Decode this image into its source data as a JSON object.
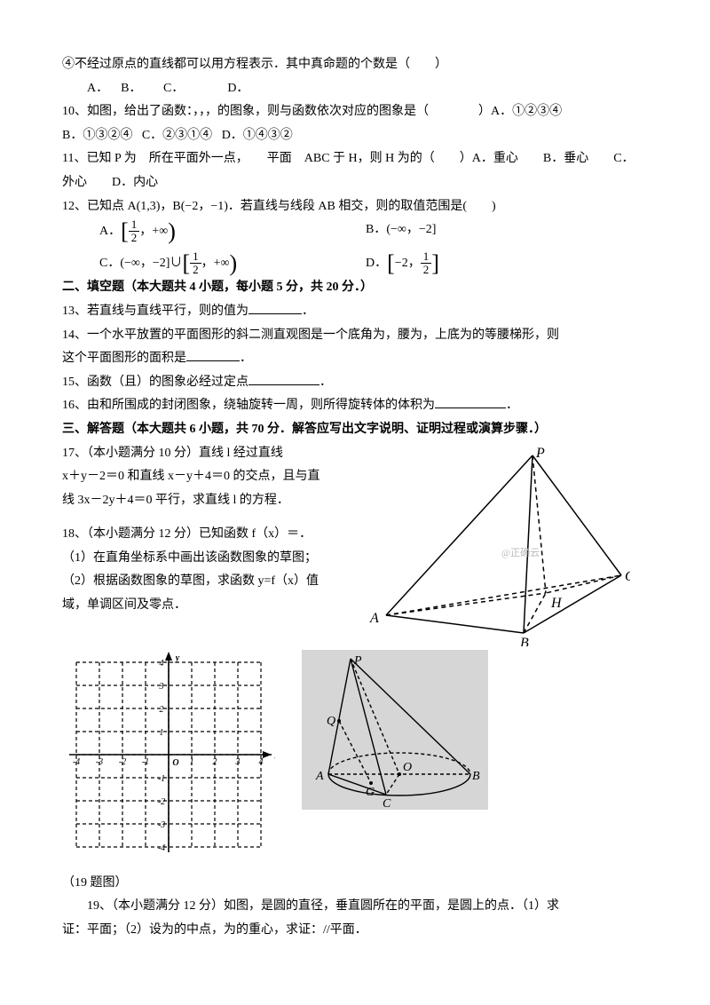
{
  "q4_suffix": "④不经过原点的直线都可以用方程表示．其中真命题的个数是（　　）",
  "q_opts_abcd": {
    "a": "A．",
    "b": "B．",
    "c": "C．",
    "d": "D．"
  },
  "q10": {
    "stem": "10、如图，给出了函数：，，，的图象，则与函数依次对应的图象是（　　　　）A．①②③④",
    "b": "B．①③②④",
    "c": "C．②③①④",
    "d": "D．①④③②"
  },
  "q11": {
    "stem_a": "11、已知 P 为　所在平面外一点，　　平面　ABC 于 H，则 H 为的（　　）A．重心　　B．垂心　　C．",
    "stem_b": "外心　　D．内心"
  },
  "q12": {
    "stem": "12、已知点 A(1,3)，B(−2，−1)．若直线与线段 AB 相交，则的取值范围是(　　)",
    "optA_pre": "A．",
    "optA_lbr": "[",
    "optA_rbr": ")",
    "optA_num": "1",
    "optA_den": "2",
    "optA_tail": "，+∞",
    "optB": "B．(−∞，−2]",
    "optC_pre": "C．(−∞，−2]∪",
    "optC_lbr": "[",
    "optC_rbr": ")",
    "optC_num": "1",
    "optC_den": "2",
    "optC_tail": "，+∞",
    "optD_pre": "D．",
    "optD_lbr": "[",
    "optD_rbr": "]",
    "optD_a": "−2，",
    "optD_num": "1",
    "optD_den": "2"
  },
  "sec2": "二、填空题（本大题共 4 小题，每小题 5 分，共 20 分．）",
  "q13": "13、若直线与直线平行，则的值为",
  "q13_end": "．",
  "q14a": "14、一个水平放置的平面图形的斜二测直观图是一个底角为，腰为，上底为的等腰梯形，则",
  "q14b": "这个平面图形的面积是",
  "q14b_end": "．",
  "q15": "15、函数（且）的图象必经过定点",
  "q15_end": "．",
  "q16": "16、由和所围成的封闭图象，绕轴旋转一周，则所得旋转体的体积为",
  "q16_end": "．",
  "sec3": "三、解答题（本大题共 6 小题，共 70 分．解答应写出文字说明、证明过程或演算步骤．）",
  "q17a": "17、（本小题满分 10 分）直线 l 经过直线",
  "q17b": "x＋y－2＝0 和直线 x－y＋4＝0 的交点，且与直",
  "q17c": "线 3x－2y＋4＝0 平行，求直线 l 的方程．",
  "q18a": "18、（本小题满分 12 分）已知函数 f（x）＝．",
  "q18b": "（1）在直角坐标系中画出该函数图象的草图；",
  "q18c": "（2）根据函数图象的草图，求函数 y=f（x）值",
  "q18d": "域，单调区间及零点．",
  "fig19_caption": "（19 题图）",
  "q19a": "19、（本小题满分 12 分）如图，是圆的直径，垂直圆所在的平面，是圆上的点．（1）求",
  "q19b": "证：平面；（2）设为的中点，为的重心，求证：//平面．",
  "pyramid": {
    "P": "P",
    "A": "A",
    "B": "B",
    "C": "C",
    "H": "H",
    "watermark": "@正确云",
    "stroke": "#000000",
    "dash": "5,4"
  },
  "grid": {
    "size": 8,
    "cell": 26,
    "axis_x": "x",
    "axis_y": "y",
    "origin": "O",
    "ticks_pos": [
      "1",
      "2",
      "3",
      "4"
    ],
    "ticks_neg": [
      "-1",
      "-2",
      "-3",
      "-4"
    ],
    "dash": "4,3",
    "stroke": "#000000"
  },
  "cone": {
    "bg": "#d6d6d6",
    "stroke": "#000000",
    "P": "P",
    "Q": "Q",
    "A": "A",
    "B": "B",
    "C": "C",
    "G": "G",
    "O": "O"
  }
}
